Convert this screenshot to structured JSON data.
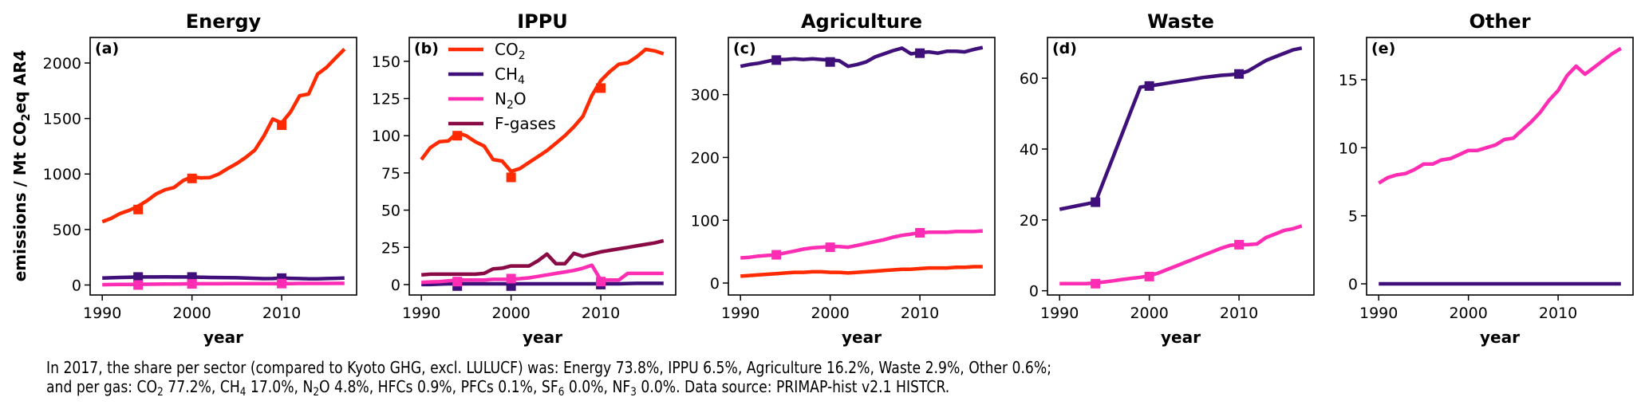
{
  "chart_data": {
    "type": "line",
    "ylabel": "emissions / Mt CO2eq AR4",
    "ylabel_parts": {
      "pre": "emissions / Mt CO",
      "sub": "2",
      "post": "eq AR4"
    },
    "xlabel": "year",
    "x": [
      1990,
      1991,
      1992,
      1993,
      1994,
      1995,
      1996,
      1997,
      1998,
      1999,
      2000,
      2001,
      2002,
      2003,
      2004,
      2005,
      2006,
      2007,
      2008,
      2009,
      2010,
      2011,
      2012,
      2013,
      2014,
      2015,
      2016,
      2017
    ],
    "xticks": [
      1990,
      2000,
      2010
    ],
    "legend": {
      "placement": "upper-left of panel (b)",
      "entries": [
        {
          "key": "CO2",
          "pre": "CO",
          "sub": "2",
          "post": ""
        },
        {
          "key": "CH4",
          "pre": "CH",
          "sub": "4",
          "post": ""
        },
        {
          "key": "N2O",
          "pre": "N",
          "sub": "2",
          "post": "O"
        },
        {
          "key": "F-gases",
          "pre": "F-gases",
          "sub": "",
          "post": ""
        }
      ]
    },
    "colors": {
      "CO2": "#ff2a00",
      "CH4": "#3f0f7a",
      "N2O": "#ff2db4",
      "F-gases": "#8a0a45"
    },
    "marker_years": [
      1994,
      2000,
      2010
    ],
    "panels": [
      {
        "title": "Energy",
        "label": "(a)",
        "ylim": [
          -90,
          2230
        ],
        "yticks": [
          0,
          500,
          1000,
          1500,
          2000
        ],
        "series": [
          {
            "name": "CO2",
            "values": [
              570,
              600,
              645,
              672,
              710,
              760,
              820,
              858,
              878,
              940,
              975,
              965,
              968,
              1000,
              1050,
              1095,
              1150,
              1215,
              1340,
              1495,
              1460,
              1560,
              1705,
              1720,
              1900,
              1960,
              2045,
              2125
            ],
            "markers": [
              680,
              960,
              1440
            ]
          },
          {
            "name": "CH4",
            "values": [
              62,
              65,
              68,
              70,
              72,
              72,
              72,
              73,
              72,
              72,
              72,
              70,
              68,
              67,
              66,
              65,
              62,
              60,
              57,
              58,
              62,
              60,
              58,
              56,
              56,
              58,
              60,
              62
            ],
            "markers": [
              72,
              72,
              62
            ]
          },
          {
            "name": "N2O",
            "values": [
              3,
              4,
              5,
              5,
              6,
              7,
              8,
              9,
              9,
              10,
              11,
              11,
              11,
              11,
              12,
              12,
              12,
              12,
              13,
              13,
              13,
              13,
              14,
              14,
              14,
              14,
              15,
              15
            ],
            "markers": [
              0,
              10,
              13
            ]
          }
        ]
      },
      {
        "title": "IPPU",
        "label": "(b)",
        "ylim": [
          -7,
          166
        ],
        "yticks": [
          0,
          25,
          50,
          75,
          100,
          125,
          150
        ],
        "series": [
          {
            "name": "CO2",
            "values": [
              84,
              92,
              96,
              96.5,
              102,
              100,
              96,
              93,
              84,
              83,
              76,
              78,
              82,
              86,
              90,
              95,
              100,
              106,
              113,
              127,
              137,
              143,
              148,
              149,
              153,
              158,
              157,
              155
            ],
            "markers": [
              100,
              72,
              132
            ]
          },
          {
            "name": "CH4",
            "values": [
              0,
              0,
              0.3,
              0.5,
              0.5,
              0.5,
              0.5,
              0.5,
              0.5,
              0.5,
              0.5,
              0.5,
              0.5,
              0.5,
              0.5,
              0.5,
              0.5,
              0.5,
              0.5,
              0.5,
              0.5,
              0.5,
              0.5,
              0.7,
              0.8,
              0.8,
              0.8,
              0.8
            ],
            "markers": [
              -1,
              -1,
              0
            ]
          },
          {
            "name": "N2O",
            "values": [
              1.5,
              1.8,
              2,
              2.5,
              3,
              3,
              3,
              3,
              3.5,
              3.5,
              3.5,
              4,
              4.5,
              5.5,
              6.5,
              7.5,
              8.5,
              9.5,
              11,
              13,
              3,
              3,
              3,
              7.5,
              7.5,
              7.5,
              7.5,
              7.5
            ],
            "markers": [
              2,
              4,
              2
            ]
          },
          {
            "name": "F-gases",
            "values": [
              6.5,
              7,
              7,
              7,
              7,
              7,
              7,
              7.5,
              10.5,
              11,
              12.5,
              12.5,
              12.5,
              16,
              20.5,
              14,
              14,
              21,
              19,
              20.5,
              22,
              23,
              24,
              25,
              26,
              27,
              28,
              29.5
            ],
            "markers": null
          }
        ]
      },
      {
        "title": "Agriculture",
        "label": "(c)",
        "ylim": [
          -19,
          391
        ],
        "yticks": [
          0,
          100,
          200,
          300
        ],
        "series": [
          {
            "name": "CH4",
            "values": [
              345,
              348,
              350,
              353,
              356,
              356,
              357,
              356,
              357,
              356,
              355,
              354,
              345,
              348,
              352,
              360,
              365,
              370,
              374,
              365,
              367,
              368,
              366,
              369,
              369,
              368,
              372,
              375
            ],
            "markers": [
              355,
              352,
              366
            ]
          },
          {
            "name": "N2O",
            "values": [
              40,
              41,
              43,
              44,
              45,
              48,
              51,
              54,
              56,
              57,
              58,
              58,
              57,
              60,
              63,
              66,
              69,
              73,
              76,
              78,
              80,
              81,
              81,
              81,
              82,
              82,
              82,
              83
            ],
            "markers": [
              45,
              57,
              80
            ]
          },
          {
            "name": "CO2",
            "values": [
              11,
              12,
              13,
              14,
              15,
              16,
              17,
              17,
              18,
              18,
              17,
              17,
              16,
              17,
              18,
              19,
              20,
              21,
              22,
              22,
              23,
              24,
              24,
              24,
              25,
              25,
              26,
              26
            ],
            "markers": null
          }
        ]
      },
      {
        "title": "Waste",
        "label": "(d)",
        "ylim": [
          -1.2,
          71.5
        ],
        "yticks": [
          0,
          20,
          40,
          60
        ],
        "series": [
          {
            "name": "CH4",
            "values": [
              23,
              23.5,
              24,
              24.5,
              25,
              31.5,
              38,
              44.5,
              51,
              57.5,
              57.8,
              58.2,
              58.6,
              59,
              59.4,
              59.8,
              60.2,
              60.5,
              60.8,
              61,
              61.2,
              62,
              63.5,
              65,
              66,
              67,
              68,
              68.5
            ],
            "markers": [
              25,
              57.8,
              61.2
            ]
          },
          {
            "name": "N2O",
            "values": [
              2,
              2,
              2,
              2,
              2.2,
              2.5,
              2.8,
              3.2,
              3.5,
              3.8,
              4.2,
              5,
              6,
              7,
              8,
              9,
              10,
              11,
              12,
              12.8,
              13,
              13,
              13.2,
              15,
              16,
              17,
              17.5,
              18.3
            ],
            "markers": [
              2,
              4,
              13
            ]
          }
        ]
      },
      {
        "title": "Other",
        "label": "(e)",
        "ylim": [
          -0.82,
          18.1
        ],
        "yticks": [
          0,
          5,
          10,
          15
        ],
        "series": [
          {
            "name": "N2O",
            "values": [
              7.4,
              7.8,
              8,
              8.1,
              8.4,
              8.8,
              8.8,
              9.1,
              9.2,
              9.5,
              9.8,
              9.8,
              10,
              10.2,
              10.6,
              10.7,
              11.3,
              11.9,
              12.6,
              13.5,
              14.2,
              15.3,
              16,
              15.4,
              15.9,
              16.4,
              16.9,
              17.3
            ],
            "markers": null
          },
          {
            "name": "CH4",
            "values": [
              0,
              0,
              0,
              0,
              0,
              0,
              0,
              0,
              0,
              0,
              0,
              0,
              0,
              0,
              0,
              0,
              0,
              0,
              0,
              0,
              0,
              0,
              0,
              0,
              0,
              0,
              0,
              0
            ],
            "markers": null
          }
        ]
      }
    ]
  },
  "caption": {
    "line1": "In 2017, the share per sector (compared to Kyoto GHG, excl. LULUCF) was: Energy 73.8%, IPPU 6.5%, Agriculture 16.2%, Waste 2.9%, Other 0.6%;",
    "line2_parts": [
      {
        "t": "and per gas: CO"
      },
      {
        "sub": "2"
      },
      {
        "t": " 77.2%, CH"
      },
      {
        "sub": "4"
      },
      {
        "t": " 17.0%, N"
      },
      {
        "sub": "2"
      },
      {
        "t": "O 4.8%, HFCs 0.9%, PFCs 0.1%, SF"
      },
      {
        "sub": "6"
      },
      {
        "t": " 0.0%, NF"
      },
      {
        "sub": "3"
      },
      {
        "t": " 0.0%. Data source: PRIMAP-hist v2.1 HISTCR."
      }
    ]
  }
}
